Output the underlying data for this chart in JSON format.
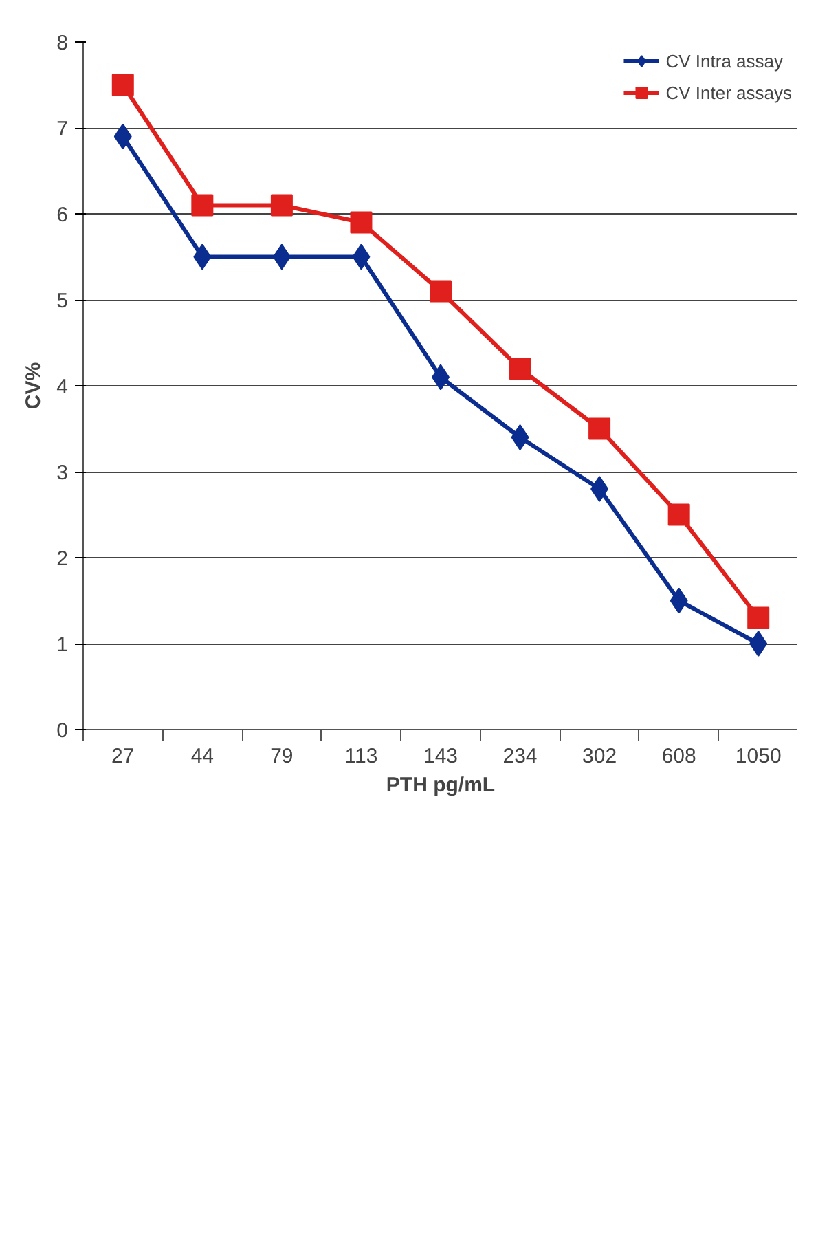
{
  "chart_data": {
    "type": "line",
    "xlabel": "PTH pg/mL",
    "ylabel": "CV%",
    "categories": [
      "27",
      "44",
      "79",
      "113",
      "143",
      "234",
      "302",
      "608",
      "1050"
    ],
    "series": [
      {
        "name": "CV Intra assay",
        "color": "#0b2d8f",
        "marker": "diamond",
        "values": [
          6.9,
          5.5,
          5.5,
          5.5,
          4.1,
          3.4,
          2.8,
          1.5,
          1.0
        ]
      },
      {
        "name": "CV Inter assays",
        "color": "#e0201c",
        "marker": "square",
        "values": [
          7.5,
          6.1,
          6.1,
          5.9,
          5.1,
          4.2,
          3.5,
          2.5,
          1.3
        ]
      }
    ],
    "ylim": [
      0,
      8
    ],
    "yticks": [
      0,
      1,
      2,
      3,
      4,
      5,
      6,
      7,
      8
    ],
    "grid": "y",
    "legend": "top right",
    "line_style": "solid"
  }
}
